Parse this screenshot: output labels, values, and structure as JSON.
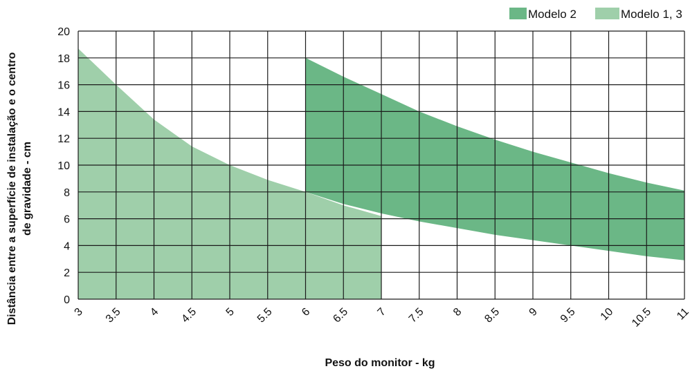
{
  "chart_data": {
    "type": "area",
    "x_ticks": [
      "3",
      "3.5",
      "4",
      "4.5",
      "5",
      "5.5",
      "6",
      "6.5",
      "7",
      "7.5",
      "8",
      "8.5",
      "9",
      "9.5",
      "10",
      "10.5",
      "11"
    ],
    "y_ticks": [
      "0",
      "2",
      "4",
      "6",
      "8",
      "10",
      "12",
      "14",
      "16",
      "18",
      "20"
    ],
    "xlim": [
      3,
      11
    ],
    "ylim": [
      0,
      20
    ],
    "xlabel": "Peso do monitor - kg",
    "ylabel_lines": [
      "Distância entre a superfície de instalação e o centro",
      "de gravidade - cm"
    ],
    "grid": true,
    "legend_position": "top-right",
    "series": [
      {
        "name": "Modelo 2",
        "color": "#6bb786",
        "x": [
          6,
          6.5,
          7,
          7.5,
          8,
          8.5,
          9,
          9.5,
          10,
          10.5,
          11
        ],
        "upper": [
          18,
          16.6,
          15.3,
          14.0,
          12.9,
          11.9,
          11.0,
          10.2,
          9.4,
          8.7,
          8.1
        ],
        "lower": [
          8,
          7.1,
          6.4,
          5.8,
          5.3,
          4.8,
          4.4,
          4.0,
          3.6,
          3.2,
          2.9
        ]
      },
      {
        "name": "Modelo 1, 3",
        "color": "#9fcfaa",
        "x": [
          3,
          3.5,
          4,
          4.5,
          5,
          5.5,
          6,
          6.5,
          7
        ],
        "upper": [
          18.7,
          16.0,
          13.4,
          11.4,
          10.0,
          8.9,
          8.0,
          7.0,
          6.2
        ],
        "lower": [
          0,
          0,
          0,
          0,
          0,
          0,
          0,
          0,
          0
        ]
      }
    ]
  }
}
